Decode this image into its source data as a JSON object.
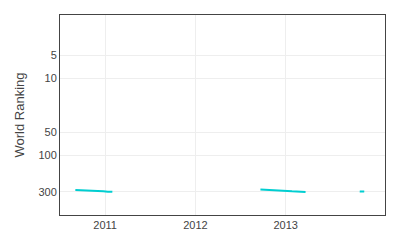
{
  "chart_data": {
    "type": "line",
    "ylabel": "World Ranking",
    "color": "#00CED1",
    "series": [
      {
        "x": [
          2010.67,
          2010.72,
          2010.78,
          2010.83,
          2010.88,
          2010.93,
          2010.98,
          2011.03,
          2011.08
        ],
        "values": [
          283,
          284,
          285,
          287,
          290,
          292,
          295,
          298,
          300
        ]
      },
      {
        "x": [
          2012.72,
          2012.77,
          2012.82,
          2012.87,
          2012.92,
          2012.97,
          2013.02,
          2013.07,
          2013.12,
          2013.17,
          2013.22
        ],
        "values": [
          280,
          281,
          283,
          285,
          287,
          290,
          292,
          295,
          297,
          299,
          301
        ]
      },
      {
        "x": [
          2013.82,
          2013.87
        ],
        "values": [
          296,
          297
        ]
      }
    ],
    "xlim": [
      2010.5,
      2014.1
    ],
    "xticks": [
      2011,
      2012,
      2013
    ],
    "ylim": [
      600,
      1.5
    ],
    "yticks": [
      5,
      10,
      50,
      100,
      300
    ],
    "log": "y",
    "grid": true
  }
}
